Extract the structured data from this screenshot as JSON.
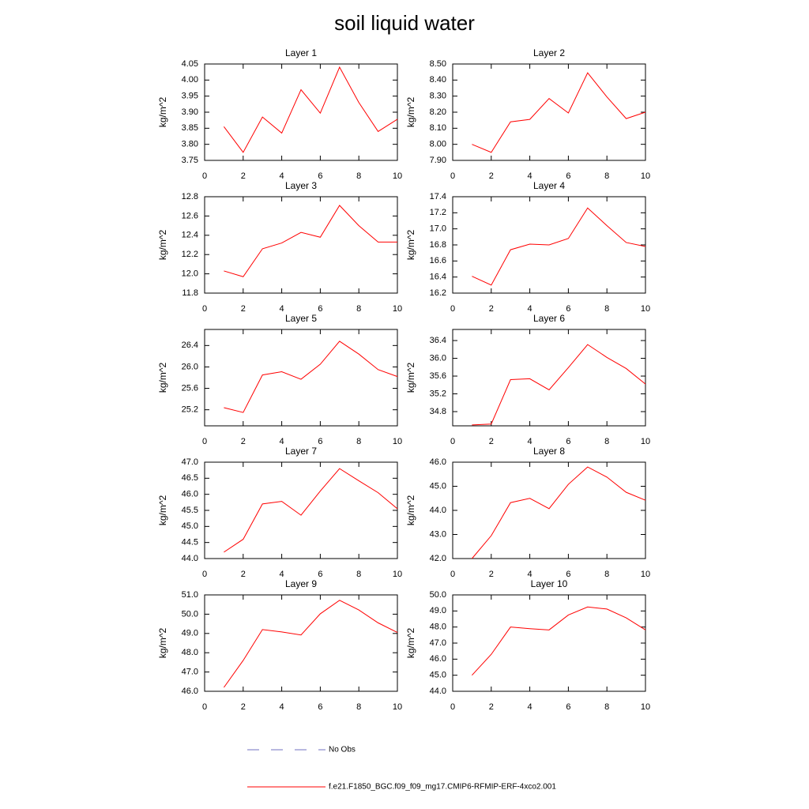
{
  "title": "soil liquid water",
  "legend": [
    {
      "name": "No Obs",
      "color": "#7070c0",
      "dash": true
    },
    {
      "name": "f.e21.F1850_BGC.f09_f09_mg17.CMIP6-RFMIP-ERF-4xco2.001",
      "color": "#ff0000",
      "dash": false
    }
  ],
  "chart_data": [
    {
      "type": "line",
      "title": "Layer 1",
      "ylabel": "kg/m^2",
      "color": "#ff0000",
      "x": [
        1,
        2,
        3,
        4,
        5,
        6,
        7,
        8,
        9,
        10
      ],
      "values": [
        3.855,
        3.775,
        3.885,
        3.835,
        3.97,
        3.897,
        4.04,
        3.93,
        3.84,
        3.878
      ],
      "xlim": [
        0,
        10
      ],
      "xticks": [
        0,
        2,
        4,
        6,
        8,
        10
      ],
      "ylim": [
        3.75,
        4.05
      ],
      "yticks": [
        3.75,
        {
          "value": 3.8,
          "label": "3.80"
        },
        3.85,
        {
          "value": 3.9,
          "label": "3.90"
        },
        3.95,
        {
          "value": 4,
          "label": "4.00"
        },
        4.05
      ]
    },
    {
      "type": "line",
      "title": "Layer 2",
      "ylabel": "kg/m^2",
      "color": "#ff0000",
      "x": [
        1,
        2,
        3,
        4,
        5,
        6,
        7,
        8,
        9,
        10
      ],
      "values": [
        8.0,
        7.95,
        8.14,
        8.155,
        8.285,
        8.195,
        8.445,
        8.295,
        8.16,
        8.2
      ],
      "xlim": [
        0,
        10
      ],
      "xticks": [
        0,
        2,
        4,
        6,
        8,
        10
      ],
      "ylim": [
        7.9,
        8.5
      ],
      "yticks": [
        {
          "value": 7.9,
          "label": "7.90"
        },
        {
          "value": 8,
          "label": "8.00"
        },
        {
          "value": 8.1,
          "label": "8.10"
        },
        {
          "value": 8.2,
          "label": "8.20"
        },
        {
          "value": 8.3,
          "label": "8.30"
        },
        {
          "value": 8.4,
          "label": "8.40"
        },
        {
          "value": 8.5,
          "label": "8.50"
        }
      ]
    },
    {
      "type": "line",
      "title": "Layer 3",
      "ylabel": "kg/m^2",
      "color": "#ff0000",
      "x": [
        1,
        2,
        3,
        4,
        5,
        6,
        7,
        8,
        9,
        10
      ],
      "values": [
        12.03,
        11.97,
        12.26,
        12.32,
        12.43,
        12.38,
        12.71,
        12.5,
        12.33,
        12.33
      ],
      "xlim": [
        0,
        10
      ],
      "xticks": [
        0,
        2,
        4,
        6,
        8,
        10
      ],
      "ylim": [
        11.8,
        12.8
      ],
      "yticks": [
        11.8,
        {
          "value": 12,
          "label": "12.0"
        },
        12.2,
        12.4,
        12.6,
        12.8
      ]
    },
    {
      "type": "line",
      "title": "Layer 4",
      "ylabel": "kg/m^2",
      "color": "#ff0000",
      "x": [
        1,
        2,
        3,
        4,
        5,
        6,
        7,
        8,
        9,
        10
      ],
      "values": [
        16.41,
        16.3,
        16.74,
        16.81,
        16.8,
        16.88,
        17.26,
        17.04,
        16.83,
        16.78
      ],
      "xlim": [
        0,
        10
      ],
      "xticks": [
        0,
        2,
        4,
        6,
        8,
        10
      ],
      "ylim": [
        16.2,
        17.4
      ],
      "yticks": [
        16.2,
        16.4,
        16.6,
        16.8,
        {
          "value": 17,
          "label": "17.0"
        },
        17.2,
        17.4
      ]
    },
    {
      "type": "line",
      "title": "Layer 5",
      "ylabel": "kg/m^2",
      "color": "#ff0000",
      "x": [
        1,
        2,
        3,
        4,
        5,
        6,
        7,
        8,
        9,
        10
      ],
      "values": [
        25.24,
        25.15,
        25.85,
        25.91,
        25.77,
        26.05,
        26.48,
        26.24,
        25.95,
        25.82
      ],
      "xlim": [
        0,
        10
      ],
      "xticks": [
        0,
        2,
        4,
        6,
        8,
        10
      ],
      "ylim": [
        24.9,
        26.7
      ],
      "yticks": [
        25.2,
        25.6,
        {
          "value": 26,
          "label": "26.0"
        },
        26.4
      ]
    },
    {
      "type": "line",
      "title": "Layer 6",
      "ylabel": "kg/m^2",
      "color": "#ff0000",
      "x": [
        1,
        2,
        3,
        4,
        5,
        6,
        7,
        8,
        9,
        10
      ],
      "values": [
        34.5,
        34.52,
        35.52,
        35.54,
        35.29,
        35.79,
        36.31,
        36.02,
        35.77,
        35.42
      ],
      "xlim": [
        0,
        10
      ],
      "xticks": [
        0,
        2,
        4,
        6,
        8,
        10
      ],
      "ylim": [
        34.48,
        36.65
      ],
      "yticks": [
        34.8,
        35.2,
        35.6,
        {
          "value": 36,
          "label": "36.0"
        },
        36.4
      ]
    },
    {
      "type": "line",
      "title": "Layer 7",
      "ylabel": "kg/m^2",
      "color": "#ff0000",
      "x": [
        1,
        2,
        3,
        4,
        5,
        6,
        7,
        8,
        9,
        10
      ],
      "values": [
        44.2,
        44.6,
        45.7,
        45.78,
        45.35,
        46.1,
        46.8,
        46.42,
        46.05,
        45.55
      ],
      "xlim": [
        0,
        10
      ],
      "xticks": [
        0,
        2,
        4,
        6,
        8,
        10
      ],
      "ylim": [
        44,
        47
      ],
      "yticks": [
        {
          "value": 44,
          "label": "44.0"
        },
        44.5,
        {
          "value": 45,
          "label": "45.0"
        },
        45.5,
        {
          "value": 46,
          "label": "46.0"
        },
        46.5,
        {
          "value": 47,
          "label": "47.0"
        }
      ]
    },
    {
      "type": "line",
      "title": "Layer 8",
      "ylabel": "kg/m^2",
      "color": "#ff0000",
      "x": [
        1,
        2,
        3,
        4,
        5,
        6,
        7,
        8,
        9,
        10
      ],
      "values": [
        42.0,
        42.95,
        44.32,
        44.5,
        44.07,
        45.08,
        45.8,
        45.38,
        44.75,
        44.42
      ],
      "xlim": [
        0,
        10
      ],
      "xticks": [
        0,
        2,
        4,
        6,
        8,
        10
      ],
      "ylim": [
        42,
        46
      ],
      "yticks": [
        {
          "value": 42,
          "label": "42.0"
        },
        {
          "value": 43,
          "label": "43.0"
        },
        {
          "value": 44,
          "label": "44.0"
        },
        {
          "value": 45,
          "label": "45.0"
        },
        {
          "value": 46,
          "label": "46.0"
        }
      ]
    },
    {
      "type": "line",
      "title": "Layer 9",
      "ylabel": "kg/m^2",
      "color": "#ff0000",
      "x": [
        1,
        2,
        3,
        4,
        5,
        6,
        7,
        8,
        9,
        10
      ],
      "values": [
        46.2,
        47.6,
        49.2,
        49.08,
        48.92,
        50.02,
        50.72,
        50.22,
        49.55,
        49.05
      ],
      "xlim": [
        0,
        10
      ],
      "xticks": [
        0,
        2,
        4,
        6,
        8,
        10
      ],
      "ylim": [
        46,
        51
      ],
      "yticks": [
        {
          "value": 46,
          "label": "46.0"
        },
        {
          "value": 47,
          "label": "47.0"
        },
        {
          "value": 48,
          "label": "48.0"
        },
        {
          "value": 49,
          "label": "49.0"
        },
        {
          "value": 50,
          "label": "50.0"
        },
        {
          "value": 51,
          "label": "51.0"
        }
      ]
    },
    {
      "type": "line",
      "title": "Layer 10",
      "ylabel": "kg/m^2",
      "color": "#ff0000",
      "x": [
        1,
        2,
        3,
        4,
        5,
        6,
        7,
        8,
        9,
        10
      ],
      "values": [
        45.0,
        46.3,
        48.0,
        47.9,
        47.82,
        48.75,
        49.25,
        49.12,
        48.57,
        47.82
      ],
      "xlim": [
        0,
        10
      ],
      "xticks": [
        0,
        2,
        4,
        6,
        8,
        10
      ],
      "ylim": [
        44,
        50
      ],
      "yticks": [
        {
          "value": 44,
          "label": "44.0"
        },
        {
          "value": 45,
          "label": "45.0"
        },
        {
          "value": 46,
          "label": "46.0"
        },
        {
          "value": 47,
          "label": "47.0"
        },
        {
          "value": 48,
          "label": "48.0"
        },
        {
          "value": 49,
          "label": "49.0"
        },
        {
          "value": 50,
          "label": "50.0"
        }
      ]
    }
  ]
}
